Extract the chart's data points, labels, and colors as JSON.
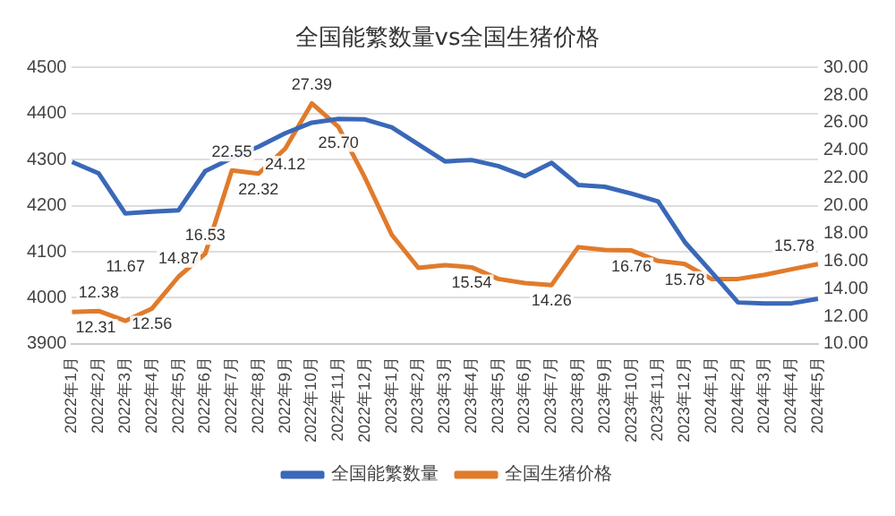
{
  "chart_data": {
    "type": "line",
    "title": "全国能繁数量vs全国生猪价格",
    "categories": [
      "2022年1月",
      "2022年2月",
      "2022年3月",
      "2022年4月",
      "2022年5月",
      "2022年6月",
      "2022年7月",
      "2022年8月",
      "2022年9月",
      "2022年10月",
      "2022年11月",
      "2022年12月",
      "2023年1月",
      "2023年2月",
      "2023年3月",
      "2023年4月",
      "2023年5月",
      "2023年6月",
      "2023年7月",
      "2023年8月",
      "2023年9月",
      "2023年10月",
      "2023年11月",
      "2023年12月",
      "2024年1月",
      "2024年2月",
      "2024年3月",
      "2024年4月",
      "2024年5月"
    ],
    "series": [
      {
        "name": "全国能繁数量",
        "color": "#3a68b8",
        "values": [
          4295,
          4270,
          4183,
          4187,
          4190,
          4275,
          4303,
          4328,
          4357,
          4380,
          4388,
          4387,
          4370,
          4333,
          4296,
          4299,
          4286,
          4264,
          4293,
          4245,
          4241,
          4226,
          4209,
          4121,
          4056,
          3990,
          3988,
          3988,
          3998
        ]
      },
      {
        "name": "全国生猪价格",
        "color": "#e07b2c",
        "axis": "y2",
        "values": [
          12.31,
          12.38,
          11.67,
          12.56,
          14.87,
          16.53,
          22.55,
          22.32,
          24.12,
          27.39,
          25.7,
          22.0,
          17.9,
          15.5,
          15.7,
          15.54,
          14.7,
          14.4,
          14.26,
          17.0,
          16.8,
          16.76,
          16.0,
          15.78,
          14.7,
          14.7,
          15.0,
          15.4,
          15.78
        ],
        "value_labels": [
          "12.31",
          "12.38",
          "11.67",
          "12.56",
          "14.87",
          "16.53",
          "22.55",
          "22.32",
          "24.12",
          "27.39",
          "25.70",
          null,
          null,
          null,
          null,
          "15.54",
          null,
          null,
          "14.26",
          null,
          null,
          "16.76",
          null,
          "15.78",
          null,
          null,
          null,
          null,
          "15.78"
        ]
      }
    ],
    "ylim": [
      3900,
      4500
    ],
    "yticks": [
      3900,
      4000,
      4100,
      4200,
      4300,
      4400,
      4500
    ],
    "y2lim": [
      10,
      30
    ],
    "y2ticks": [
      {
        "value": 10,
        "label": "10.00"
      },
      {
        "value": 12,
        "label": "12.00"
      },
      {
        "value": 14,
        "label": "14.00"
      },
      {
        "value": 16,
        "label": "16.00"
      },
      {
        "value": 18,
        "label": "18.00"
      },
      {
        "value": 20,
        "label": "20.00"
      },
      {
        "value": 22,
        "label": "22.00"
      },
      {
        "value": 24,
        "label": "24.00"
      },
      {
        "value": 26,
        "label": "26.00"
      },
      {
        "value": 28,
        "label": "28.00"
      },
      {
        "value": 30,
        "label": "30.00"
      }
    ],
    "grid": "y",
    "legend": "bottom",
    "marker": "none",
    "line_style": "solid"
  }
}
